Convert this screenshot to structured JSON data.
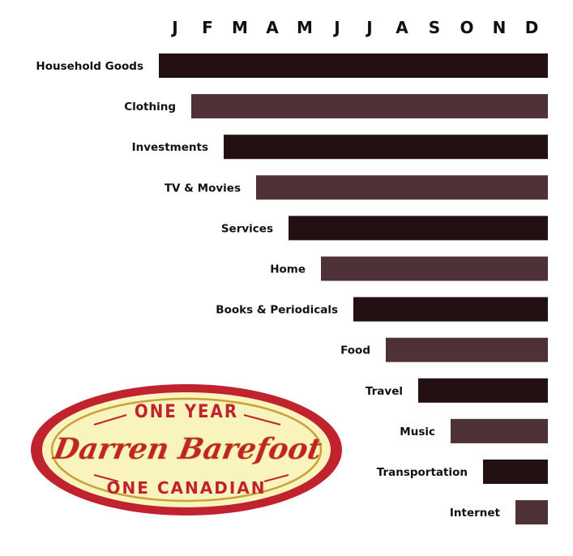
{
  "chart_data": {
    "type": "bar",
    "orientation": "horizontal",
    "subtype": "gantt",
    "months": [
      "J",
      "F",
      "M",
      "A",
      "M",
      "J",
      "J",
      "A",
      "S",
      "O",
      "N",
      "D"
    ],
    "categories": [
      "Household Goods",
      "Clothing",
      "Investments",
      "TV & Movies",
      "Services",
      "Home",
      "Books & Periodicals",
      "Food",
      "Travel",
      "Music",
      "Transportation",
      "Internet"
    ],
    "start_month": [
      1,
      2,
      3,
      4,
      5,
      6,
      7,
      8,
      9,
      10,
      11,
      12
    ],
    "end_month": [
      12,
      12,
      12,
      12,
      12,
      12,
      12,
      12,
      12,
      12,
      12,
      12
    ],
    "colors": [
      "#231013",
      "#4f3237"
    ],
    "title": "",
    "xlabel": "",
    "ylabel": "",
    "grid": false,
    "legend": "none"
  },
  "logo": {
    "top_text": "ONE YEAR",
    "script_text": "Darren Barefoot",
    "bottom_text": "ONE CANADIAN",
    "colors": {
      "red": "#c0222e",
      "cream": "#f9f3bd",
      "gold": "#c9a23a"
    }
  }
}
